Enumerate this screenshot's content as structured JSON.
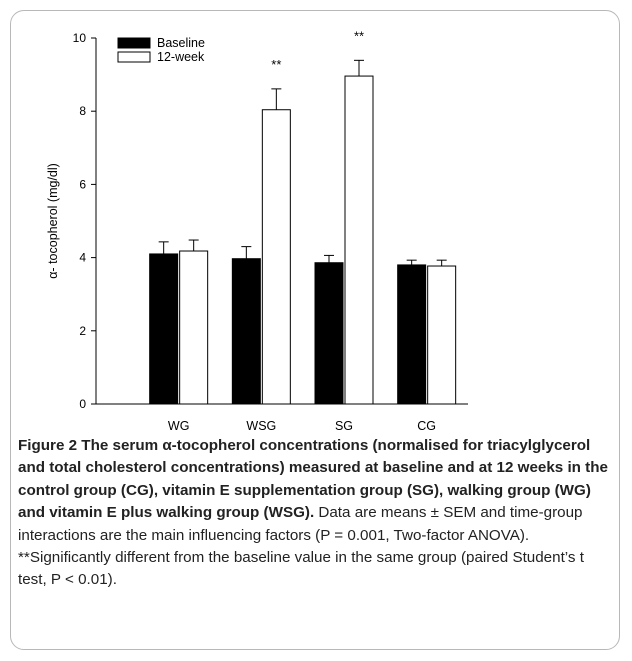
{
  "chart_data": {
    "type": "bar",
    "categories": [
      "WG",
      "WSG",
      "SG",
      "CG"
    ],
    "series": [
      {
        "name": "Baseline",
        "values": [
          4.1,
          3.97,
          3.86,
          3.8
        ],
        "errors": [
          0.33,
          0.33,
          0.2,
          0.13
        ],
        "color": "#000000"
      },
      {
        "name": "12-week",
        "values": [
          4.18,
          8.04,
          8.96,
          3.77
        ],
        "errors": [
          0.3,
          0.57,
          0.43,
          0.16
        ],
        "color": "#ffffff"
      }
    ],
    "annotations": [
      {
        "category": "WSG",
        "series": "12-week",
        "text": "**"
      },
      {
        "category": "SG",
        "series": "12-week",
        "text": "**"
      }
    ],
    "ylabel": "α- tocopherol (mg/dl)",
    "ylim": [
      0,
      10
    ],
    "yticks": [
      "0",
      "2",
      "4",
      "6",
      "8",
      "10"
    ],
    "grid": false,
    "legend_position": "top-left"
  },
  "caption": {
    "bold": "Figure 2 The serum α-tocopherol concentrations (normalised for triacylglycerol and total cholesterol concentrations) measured at baseline and at 12 weeks in the control group (CG), vitamin E supplementation group (SG), walking group (WG) and vitamin E plus walking group (WSG).",
    "normal": " Data are means ± SEM and time-group interactions are the main influencing factors (P = 0.001, Two-factor ANOVA). **Significantly different from the baseline value in the same group (paired Student’s t test, P < 0.01)."
  }
}
